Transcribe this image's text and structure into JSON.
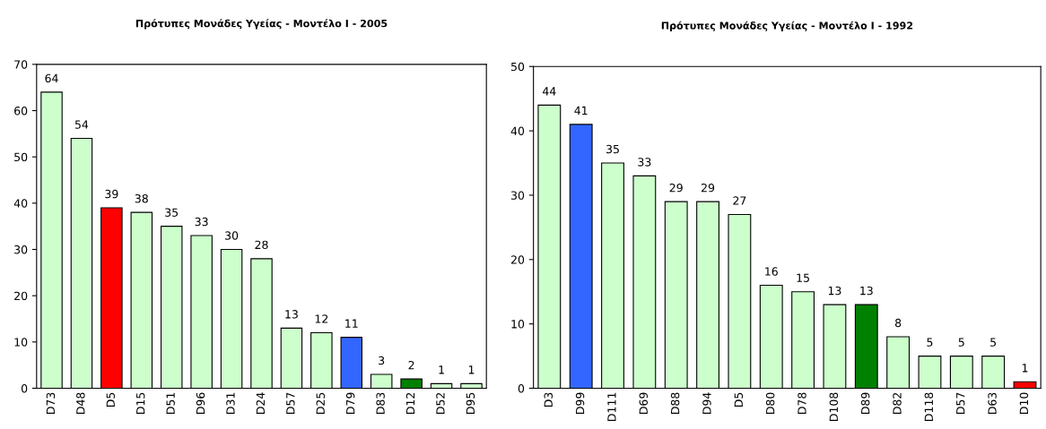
{
  "chart_data": [
    {
      "type": "bar",
      "title": "Πρότυπες Μονάδες Υγείας - Μοντέλο Ι - 2005",
      "categories": [
        "D73",
        "D48",
        "D5",
        "D15",
        "D51",
        "D96",
        "D31",
        "D24",
        "D57",
        "D25",
        "D79",
        "D83",
        "D12",
        "D52",
        "D95"
      ],
      "values": [
        64,
        54,
        39,
        38,
        35,
        33,
        30,
        28,
        13,
        12,
        11,
        3,
        2,
        1,
        1
      ],
      "colors": [
        "#ccffcc",
        "#ccffcc",
        "#ff0000",
        "#ccffcc",
        "#ccffcc",
        "#ccffcc",
        "#ccffcc",
        "#ccffcc",
        "#ccffcc",
        "#ccffcc",
        "#3366ff",
        "#ccffcc",
        "#008000",
        "#ccffcc",
        "#ccffcc"
      ],
      "ylim": [
        0,
        70
      ],
      "yticks": [
        0,
        10,
        20,
        30,
        40,
        50,
        60,
        70
      ],
      "data_labels": true,
      "grid": false,
      "legend": false
    },
    {
      "type": "bar",
      "title": "Πρότυπες Μονάδες Υγείας - Μοντέλο Ι - 1992",
      "categories": [
        "D3",
        "D99",
        "D111",
        "D69",
        "D88",
        "D94",
        "D5",
        "D80",
        "D78",
        "D108",
        "D89",
        "D82",
        "D118",
        "D57",
        "D63",
        "D10"
      ],
      "values": [
        44,
        41,
        35,
        33,
        29,
        29,
        27,
        16,
        15,
        13,
        13,
        8,
        5,
        5,
        5,
        1
      ],
      "colors": [
        "#ccffcc",
        "#3366ff",
        "#ccffcc",
        "#ccffcc",
        "#ccffcc",
        "#ccffcc",
        "#ccffcc",
        "#ccffcc",
        "#ccffcc",
        "#ccffcc",
        "#008000",
        "#ccffcc",
        "#ccffcc",
        "#ccffcc",
        "#ccffcc",
        "#ff0000"
      ],
      "ylim": [
        0,
        50
      ],
      "yticks": [
        0,
        10,
        20,
        30,
        40,
        50
      ],
      "data_labels": true,
      "grid": false,
      "legend": false
    }
  ]
}
